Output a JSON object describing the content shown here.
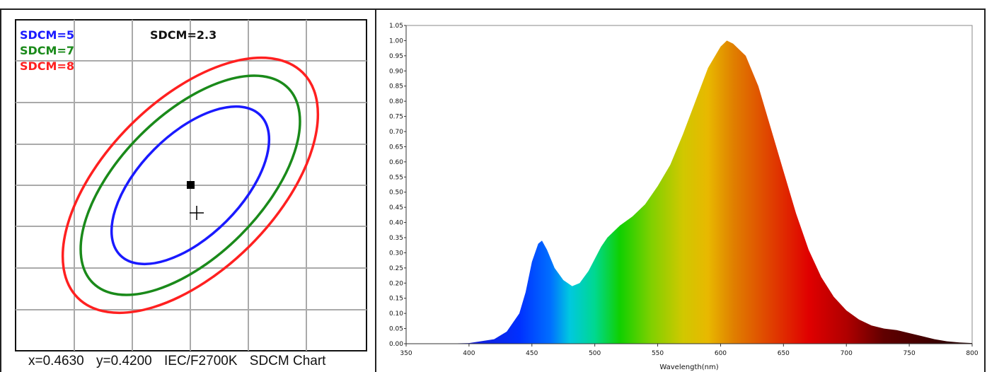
{
  "chart_data": [
    {
      "type": "scatter",
      "subtype": "sdcm-ellipse-chart",
      "legend": [
        {
          "label": "SDCM=5",
          "color": "#1a1aff"
        },
        {
          "label": "SDCM=7",
          "color": "#1a8a1a"
        },
        {
          "label": "SDCM=8",
          "color": "#ff2020"
        }
      ],
      "annotation": "SDCM=2.3",
      "reference_point": "square-marker",
      "measured_point": "plus-marker",
      "grid": true,
      "caption": {
        "x": "x=0.4630",
        "y": "y=0.4200",
        "standard": "IEC/F2700K",
        "title": "SDCM Chart"
      }
    },
    {
      "type": "area",
      "x_label": "Wavelength(nm)",
      "xlim": [
        350,
        800
      ],
      "ylim": [
        0,
        1.05
      ],
      "x_ticks": [
        350,
        400,
        450,
        500,
        550,
        600,
        650,
        700,
        750,
        800
      ],
      "y_ticks": [
        "0.00",
        "0.05",
        "0.10",
        "0.15",
        "0.20",
        "0.25",
        "0.30",
        "0.35",
        "0.40",
        "0.45",
        "0.50",
        "0.55",
        "0.60",
        "0.65",
        "0.70",
        "0.75",
        "0.80",
        "0.85",
        "0.90",
        "0.95",
        "1.00",
        "1.05"
      ],
      "grid": false,
      "fill": "visible-spectrum-colors",
      "x": [
        350,
        380,
        400,
        420,
        430,
        440,
        445,
        450,
        455,
        458,
        462,
        468,
        475,
        482,
        488,
        495,
        500,
        505,
        510,
        515,
        520,
        530,
        540,
        550,
        560,
        570,
        580,
        590,
        600,
        605,
        610,
        620,
        630,
        640,
        650,
        660,
        670,
        680,
        690,
        700,
        710,
        720,
        730,
        740,
        750,
        760,
        770,
        780,
        790,
        800
      ],
      "y": [
        0,
        0,
        0.002,
        0.015,
        0.04,
        0.1,
        0.17,
        0.27,
        0.33,
        0.34,
        0.31,
        0.25,
        0.21,
        0.19,
        0.2,
        0.24,
        0.28,
        0.32,
        0.35,
        0.37,
        0.39,
        0.42,
        0.46,
        0.52,
        0.59,
        0.69,
        0.8,
        0.91,
        0.98,
        1.0,
        0.99,
        0.95,
        0.85,
        0.71,
        0.57,
        0.43,
        0.31,
        0.22,
        0.155,
        0.11,
        0.08,
        0.06,
        0.05,
        0.045,
        0.035,
        0.025,
        0.015,
        0.008,
        0.004,
        0.002
      ]
    }
  ]
}
